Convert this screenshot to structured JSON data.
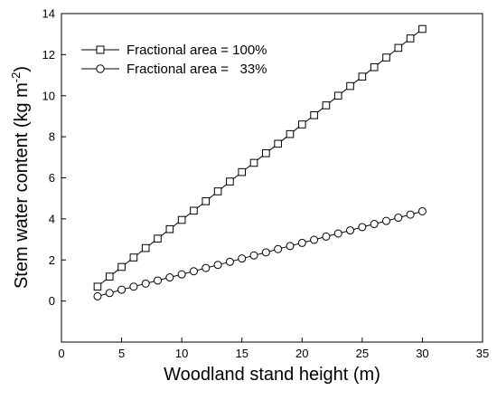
{
  "chart_data": {
    "type": "line",
    "xlabel": "Woodland stand height (m)",
    "ylabel_main": "Stem water content (kg m",
    "ylabel_sup": "-2",
    "ylabel_close": ")",
    "xlim": [
      0,
      35
    ],
    "ylim": [
      -2,
      14
    ],
    "xticks": [
      0,
      5,
      10,
      15,
      20,
      25,
      30,
      35
    ],
    "yticks": [
      0,
      2,
      4,
      6,
      8,
      10,
      12,
      14
    ],
    "grid": false,
    "legend_position": "top-left",
    "series": [
      {
        "name": "Fractional area = 100%",
        "marker": "square",
        "x": [
          3,
          4,
          5,
          6,
          7,
          8,
          9,
          10,
          11,
          12,
          13,
          14,
          15,
          16,
          17,
          18,
          19,
          20,
          21,
          22,
          23,
          24,
          25,
          26,
          27,
          28,
          29,
          30
        ],
        "y": [
          0.7,
          1.19,
          1.66,
          2.12,
          2.58,
          3.04,
          3.5,
          3.95,
          4.4,
          4.86,
          5.34,
          5.82,
          6.28,
          6.73,
          7.2,
          7.66,
          8.13,
          8.6,
          9.05,
          9.53,
          10.0,
          10.47,
          10.93,
          11.39,
          11.86,
          12.33,
          12.79,
          13.25
        ]
      },
      {
        "name": "Fractional area =   33%",
        "marker": "circle",
        "x": [
          3,
          4,
          5,
          6,
          7,
          8,
          9,
          10,
          11,
          12,
          13,
          14,
          15,
          16,
          17,
          18,
          19,
          20,
          21,
          22,
          23,
          24,
          25,
          26,
          27,
          28,
          29,
          30
        ],
        "y": [
          0.23,
          0.39,
          0.55,
          0.7,
          0.85,
          1.0,
          1.15,
          1.3,
          1.45,
          1.61,
          1.76,
          1.91,
          2.07,
          2.22,
          2.37,
          2.53,
          2.68,
          2.83,
          2.98,
          3.14,
          3.29,
          3.44,
          3.6,
          3.75,
          3.9,
          4.06,
          4.21,
          4.37
        ]
      }
    ]
  }
}
